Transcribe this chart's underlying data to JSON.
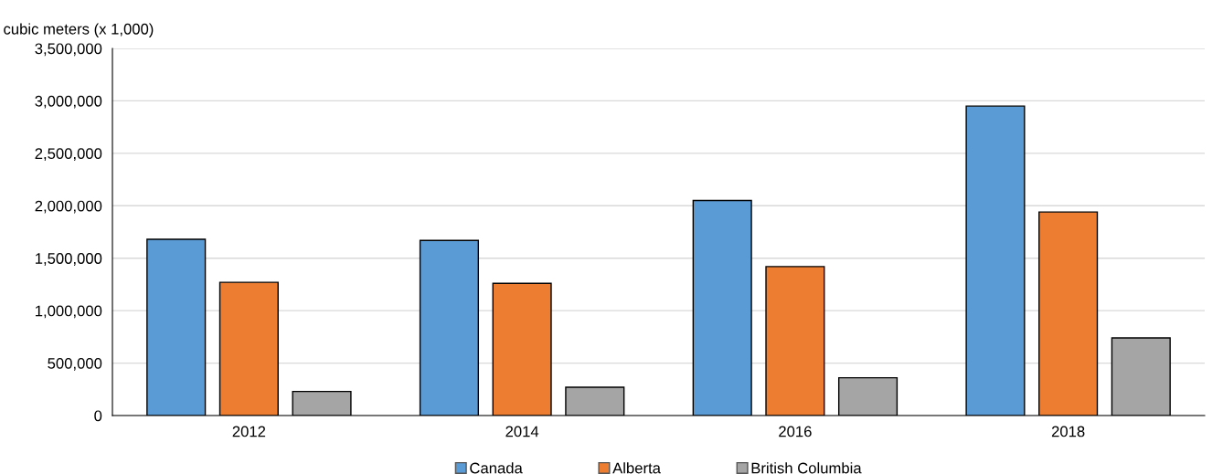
{
  "chart_data": {
    "type": "bar",
    "ylabel": "cubic meters (x 1,000)",
    "categories": [
      "2012",
      "2014",
      "2016",
      "2018"
    ],
    "series": [
      {
        "name": "Canada",
        "color": "#5b9bd5",
        "values": [
          1680000,
          1670000,
          2050000,
          2950000
        ]
      },
      {
        "name": "Alberta",
        "color": "#ed7d31",
        "values": [
          1270000,
          1260000,
          1420000,
          1940000
        ]
      },
      {
        "name": "British Columbia",
        "color": "#a5a5a5",
        "values": [
          230000,
          270000,
          360000,
          740000
        ]
      }
    ],
    "ylim": [
      0,
      3500000
    ],
    "yticks": [
      {
        "value": 0,
        "label": "0"
      },
      {
        "value": 500000,
        "label": "500,000"
      },
      {
        "value": 1000000,
        "label": "1,000,000"
      },
      {
        "value": 1500000,
        "label": "1,500,000"
      },
      {
        "value": 2000000,
        "label": "2,000,000"
      },
      {
        "value": 2500000,
        "label": "2,500,000"
      },
      {
        "value": 3000000,
        "label": "3,000,000"
      },
      {
        "value": 3500000,
        "label": "3,500,000"
      }
    ],
    "grid": "y",
    "legend": "bottom"
  }
}
